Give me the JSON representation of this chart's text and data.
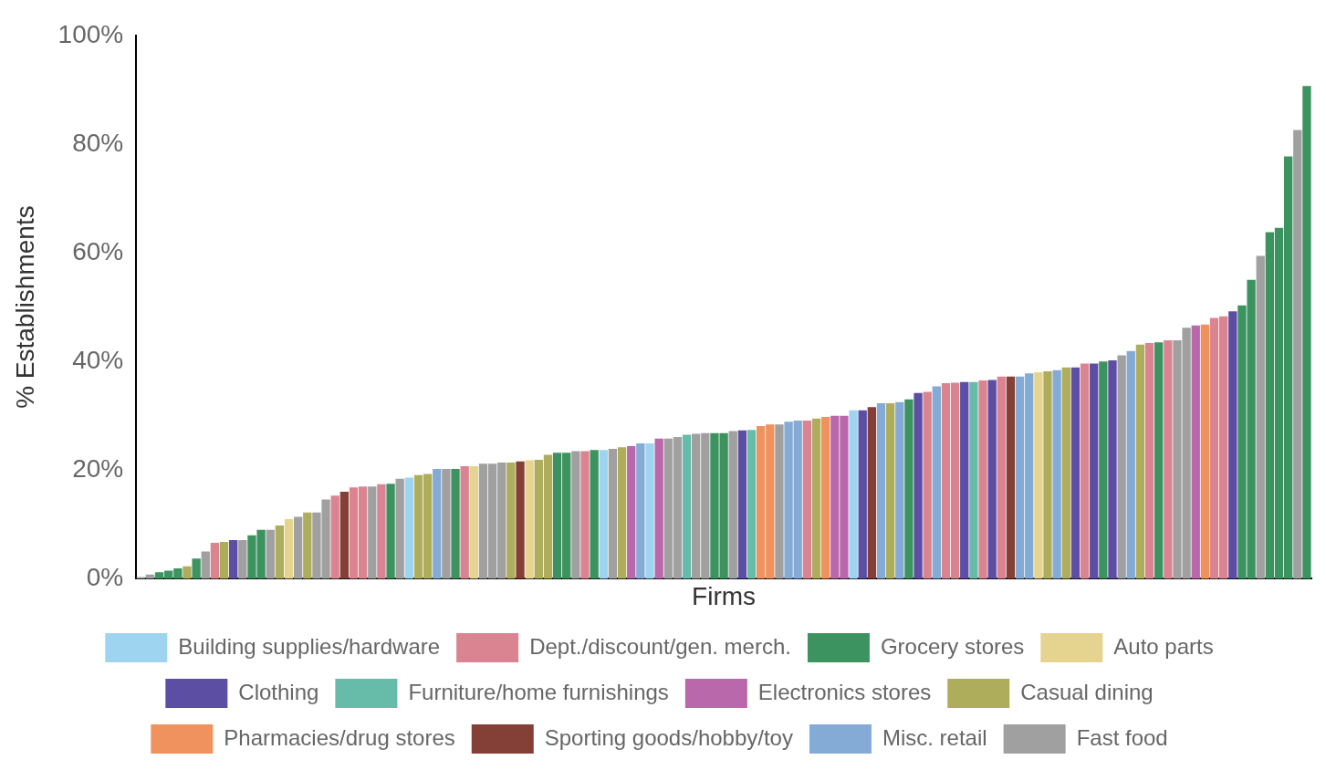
{
  "chart_data": {
    "type": "bar",
    "xlabel": "Firms",
    "ylabel": "% Establishments",
    "categories": [
      null,
      null,
      null,
      null,
      null,
      null,
      null,
      null,
      null,
      null,
      null,
      null,
      null,
      null,
      null,
      null,
      null,
      null,
      null,
      null,
      null,
      null,
      null,
      null,
      null,
      null,
      null,
      null,
      null,
      null,
      null,
      null,
      null,
      null,
      null,
      null,
      null,
      null,
      null,
      null,
      null,
      null,
      null,
      null,
      null,
      null,
      null,
      null,
      null,
      null,
      null,
      null,
      null,
      null,
      null,
      null,
      null,
      null,
      null,
      null,
      null,
      null,
      null,
      null,
      null,
      null,
      null,
      null,
      null,
      null,
      null,
      null,
      null,
      null,
      null,
      null,
      null,
      null,
      null,
      null,
      null,
      null,
      null,
      null,
      null,
      null,
      null,
      null,
      null,
      null,
      null,
      null,
      null,
      null,
      null,
      null,
      null,
      null,
      null,
      null,
      null,
      null,
      null,
      null,
      null,
      null,
      null,
      null,
      null,
      null,
      null,
      null,
      null,
      null,
      null,
      null,
      null,
      null,
      null,
      null,
      null,
      null,
      null,
      null,
      null,
      null,
      null
    ],
    "ylim": [
      0,
      100
    ],
    "yticks": [
      {
        "value": 0,
        "label": "0%"
      },
      {
        "value": 20,
        "label": "20%"
      },
      {
        "value": 40,
        "label": "40%"
      },
      {
        "value": 60,
        "label": "60%"
      },
      {
        "value": 80,
        "label": "80%"
      },
      {
        "value": 100,
        "label": "100%"
      }
    ],
    "stacked": true,
    "grid": false,
    "legend": "bottom",
    "series": [
      {
        "name": "Building supplies/hardware",
        "color": "#9fd4f0",
        "values": [
          null,
          null,
          null,
          null,
          null,
          null,
          null,
          null,
          null,
          null,
          null,
          null,
          null,
          null,
          null,
          null,
          null,
          null,
          null,
          null,
          null,
          null,
          null,
          null,
          null,
          null,
          null,
          null,
          null,
          18.6,
          null,
          null,
          null,
          null,
          null,
          null,
          null,
          null,
          null,
          null,
          null,
          null,
          null,
          null,
          null,
          null,
          null,
          null,
          null,
          null,
          23.7,
          null,
          null,
          null,
          null,
          24.9,
          null,
          null,
          null,
          null,
          null,
          null,
          null,
          null,
          null,
          null,
          null,
          null,
          null,
          null,
          null,
          null,
          null,
          null,
          null,
          null,
          null,
          31,
          null,
          null,
          null,
          null,
          null,
          null,
          null,
          null,
          null,
          null,
          null,
          null,
          null,
          null,
          null,
          null,
          null,
          null,
          null,
          null,
          null,
          null,
          null,
          null,
          null,
          null,
          null,
          null,
          null,
          null,
          null,
          null,
          null,
          null,
          null,
          null,
          null,
          null,
          null,
          null,
          null,
          null,
          null,
          null,
          null,
          null,
          null,
          null,
          null
        ]
      },
      {
        "name": "Dept./discount/gen. merch.",
        "color": "#d98490",
        "values": [
          null,
          null,
          null,
          null,
          null,
          null,
          null,
          null,
          6.6,
          null,
          null,
          null,
          null,
          null,
          null,
          null,
          null,
          null,
          null,
          null,
          null,
          15.3,
          null,
          16.8,
          17,
          null,
          17.4,
          null,
          null,
          null,
          null,
          null,
          null,
          null,
          null,
          20.7,
          null,
          null,
          null,
          null,
          null,
          null,
          null,
          null,
          null,
          null,
          null,
          null,
          23.5,
          null,
          null,
          null,
          null,
          null,
          null,
          null,
          null,
          null,
          null,
          null,
          null,
          null,
          null,
          null,
          null,
          null,
          null,
          null,
          null,
          null,
          null,
          null,
          29.1,
          null,
          null,
          null,
          null,
          null,
          null,
          null,
          null,
          null,
          null,
          null,
          null,
          34.4,
          null,
          36,
          36.1,
          null,
          null,
          36.5,
          null,
          37.2,
          null,
          null,
          null,
          null,
          null,
          null,
          null,
          null,
          39.6,
          null,
          null,
          null,
          null,
          null,
          null,
          43.4,
          null,
          43.9,
          null,
          null,
          null,
          null,
          48,
          48.3,
          null,
          null,
          null,
          null,
          null,
          null,
          null,
          null,
          null
        ]
      },
      {
        "name": "Grocery stores",
        "color": "#3d9360",
        "values": [
          null,
          null,
          1.2,
          1.5,
          1.9,
          null,
          3.7,
          null,
          null,
          null,
          null,
          null,
          8,
          9,
          null,
          null,
          null,
          null,
          null,
          null,
          null,
          null,
          null,
          null,
          null,
          null,
          null,
          17.5,
          null,
          null,
          null,
          null,
          null,
          null,
          20.2,
          null,
          null,
          null,
          null,
          null,
          null,
          null,
          null,
          null,
          null,
          23.2,
          23.2,
          null,
          null,
          23.7,
          null,
          null,
          null,
          null,
          null,
          null,
          null,
          null,
          null,
          null,
          null,
          null,
          26.8,
          26.8,
          null,
          null,
          null,
          null,
          null,
          null,
          null,
          null,
          null,
          null,
          null,
          null,
          null,
          null,
          null,
          null,
          null,
          null,
          null,
          33,
          null,
          null,
          null,
          null,
          null,
          null,
          null,
          null,
          null,
          null,
          null,
          null,
          null,
          null,
          null,
          null,
          null,
          null,
          null,
          null,
          40,
          null,
          null,
          null,
          null,
          null,
          43.5,
          null,
          null,
          null,
          null,
          null,
          null,
          null,
          null,
          50.3,
          55,
          null,
          63.8,
          64.6,
          77.7,
          null,
          90.7
        ]
      },
      {
        "name": "Auto parts",
        "color": "#e5d490",
        "values": [
          null,
          null,
          null,
          null,
          null,
          null,
          null,
          null,
          null,
          null,
          null,
          null,
          null,
          null,
          null,
          null,
          11,
          null,
          null,
          null,
          null,
          null,
          null,
          null,
          null,
          null,
          null,
          null,
          null,
          null,
          null,
          null,
          null,
          null,
          null,
          null,
          20.7,
          null,
          null,
          null,
          null,
          null,
          21.8,
          null,
          null,
          null,
          null,
          null,
          null,
          null,
          null,
          null,
          null,
          null,
          null,
          null,
          null,
          null,
          null,
          null,
          null,
          null,
          null,
          null,
          null,
          null,
          null,
          null,
          null,
          null,
          null,
          null,
          null,
          null,
          null,
          null,
          null,
          null,
          null,
          null,
          null,
          null,
          null,
          null,
          null,
          null,
          null,
          null,
          null,
          null,
          null,
          null,
          null,
          null,
          null,
          null,
          null,
          38,
          null,
          null,
          null,
          null,
          null,
          null,
          null,
          null,
          null,
          null,
          null,
          null,
          null,
          null,
          null,
          null,
          null,
          null,
          null,
          null,
          null,
          null,
          null,
          null,
          null,
          null,
          null,
          null,
          null
        ]
      },
      {
        "name": "Clothing",
        "color": "#5b4ea3",
        "values": [
          null,
          null,
          null,
          null,
          null,
          null,
          null,
          null,
          null,
          null,
          7.1,
          null,
          null,
          null,
          null,
          null,
          null,
          null,
          null,
          null,
          null,
          null,
          null,
          null,
          null,
          null,
          null,
          null,
          null,
          null,
          null,
          null,
          null,
          null,
          null,
          null,
          null,
          null,
          null,
          null,
          null,
          null,
          null,
          null,
          null,
          null,
          null,
          null,
          null,
          null,
          null,
          null,
          null,
          null,
          null,
          null,
          null,
          null,
          null,
          null,
          null,
          null,
          null,
          null,
          null,
          27.3,
          null,
          null,
          null,
          null,
          null,
          null,
          null,
          null,
          null,
          null,
          null,
          null,
          31,
          null,
          null,
          null,
          null,
          null,
          34.2,
          null,
          null,
          null,
          null,
          36.2,
          null,
          null,
          36.6,
          null,
          null,
          null,
          null,
          null,
          null,
          null,
          null,
          38.9,
          null,
          39.6,
          null,
          40.2,
          null,
          null,
          null,
          null,
          null,
          null,
          null,
          null,
          null,
          null,
          null,
          null,
          49.2,
          null,
          null,
          null,
          null,
          null,
          null,
          null,
          null
        ]
      },
      {
        "name": "Furniture/home furnishings",
        "color": "#66bba9",
        "values": [
          null,
          null,
          null,
          null,
          null,
          null,
          null,
          null,
          null,
          null,
          null,
          null,
          null,
          null,
          null,
          null,
          null,
          null,
          null,
          null,
          null,
          null,
          null,
          null,
          null,
          null,
          null,
          null,
          null,
          null,
          null,
          null,
          null,
          null,
          null,
          null,
          null,
          null,
          null,
          null,
          null,
          null,
          null,
          null,
          null,
          null,
          null,
          null,
          null,
          null,
          null,
          null,
          null,
          null,
          null,
          null,
          null,
          null,
          null,
          26.5,
          null,
          null,
          null,
          null,
          null,
          null,
          27.4,
          null,
          null,
          null,
          null,
          null,
          null,
          null,
          null,
          null,
          null,
          null,
          null,
          null,
          null,
          null,
          null,
          null,
          null,
          null,
          null,
          null,
          null,
          null,
          36.2,
          null,
          null,
          null,
          null,
          null,
          null,
          null,
          null,
          null,
          null,
          null,
          null,
          null,
          null,
          null,
          null,
          null,
          null,
          null,
          null,
          null,
          null,
          null,
          null,
          null,
          null,
          null,
          null,
          null,
          null,
          null,
          null,
          null,
          null,
          null,
          null
        ]
      },
      {
        "name": "Electronics stores",
        "color": "#b968ab",
        "values": [
          null,
          null,
          null,
          null,
          null,
          null,
          null,
          null,
          null,
          null,
          null,
          null,
          null,
          null,
          null,
          null,
          null,
          null,
          null,
          null,
          null,
          null,
          null,
          null,
          null,
          null,
          null,
          null,
          null,
          null,
          null,
          null,
          null,
          null,
          null,
          null,
          null,
          null,
          null,
          null,
          null,
          null,
          null,
          null,
          null,
          null,
          null,
          null,
          null,
          null,
          null,
          null,
          null,
          24.4,
          null,
          null,
          25.8,
          null,
          null,
          null,
          null,
          null,
          null,
          null,
          null,
          null,
          null,
          null,
          null,
          null,
          null,
          null,
          null,
          null,
          null,
          30,
          30,
          null,
          null,
          null,
          null,
          null,
          null,
          null,
          null,
          null,
          null,
          null,
          null,
          null,
          null,
          null,
          null,
          null,
          null,
          null,
          null,
          null,
          null,
          null,
          null,
          null,
          null,
          null,
          null,
          null,
          null,
          null,
          null,
          null,
          null,
          null,
          null,
          null,
          46.6,
          null,
          null,
          null,
          null,
          null,
          null,
          null,
          null,
          null,
          null,
          null,
          null
        ]
      },
      {
        "name": "Casual dining",
        "color": "#adad5b",
        "values": [
          null,
          null,
          null,
          null,
          null,
          2.3,
          null,
          null,
          null,
          6.8,
          null,
          null,
          null,
          null,
          null,
          9.8,
          null,
          null,
          12.2,
          null,
          null,
          null,
          null,
          null,
          null,
          null,
          null,
          null,
          null,
          null,
          19.1,
          19.3,
          null,
          null,
          null,
          null,
          null,
          null,
          null,
          null,
          21.4,
          null,
          null,
          21.9,
          22.8,
          null,
          null,
          null,
          null,
          null,
          null,
          null,
          24.2,
          null,
          null,
          null,
          null,
          null,
          null,
          null,
          null,
          null,
          null,
          null,
          null,
          null,
          null,
          null,
          null,
          null,
          null,
          null,
          null,
          29.5,
          null,
          null,
          null,
          null,
          null,
          null,
          null,
          32.3,
          null,
          null,
          null,
          null,
          null,
          null,
          null,
          null,
          null,
          null,
          null,
          null,
          null,
          null,
          null,
          null,
          38.2,
          null,
          38.9,
          null,
          null,
          null,
          null,
          null,
          null,
          null,
          43.1,
          null,
          null,
          null,
          null,
          null,
          null,
          null,
          null,
          null,
          null,
          null,
          null,
          null,
          null,
          null,
          null,
          null,
          null
        ]
      },
      {
        "name": "Pharmacies/drug stores",
        "color": "#f0925e",
        "values": [
          null,
          null,
          null,
          null,
          null,
          null,
          null,
          null,
          null,
          null,
          null,
          null,
          null,
          null,
          null,
          null,
          null,
          null,
          null,
          null,
          null,
          null,
          null,
          null,
          null,
          null,
          null,
          null,
          null,
          null,
          null,
          null,
          null,
          null,
          null,
          null,
          null,
          null,
          null,
          null,
          null,
          null,
          null,
          null,
          null,
          null,
          null,
          null,
          null,
          null,
          null,
          null,
          null,
          null,
          null,
          null,
          null,
          null,
          null,
          null,
          null,
          null,
          null,
          null,
          null,
          null,
          null,
          28.1,
          28.4,
          null,
          null,
          null,
          null,
          null,
          29.8,
          null,
          null,
          null,
          null,
          null,
          null,
          null,
          null,
          null,
          null,
          null,
          null,
          null,
          null,
          null,
          null,
          null,
          null,
          null,
          null,
          null,
          null,
          null,
          null,
          null,
          null,
          null,
          null,
          null,
          null,
          null,
          null,
          null,
          null,
          null,
          null,
          null,
          null,
          null,
          null,
          46.8,
          null,
          null,
          null,
          null,
          null,
          null,
          null,
          null,
          null,
          null,
          null
        ]
      },
      {
        "name": "Sporting goods/hobby/toy",
        "color": "#843f36",
        "values": [
          null,
          null,
          null,
          null,
          null,
          null,
          null,
          null,
          null,
          null,
          null,
          null,
          null,
          null,
          null,
          null,
          null,
          null,
          null,
          null,
          null,
          null,
          16,
          null,
          null,
          null,
          null,
          null,
          null,
          null,
          null,
          null,
          null,
          null,
          null,
          null,
          null,
          null,
          null,
          null,
          null,
          21.6,
          null,
          null,
          null,
          null,
          null,
          null,
          null,
          null,
          null,
          null,
          null,
          null,
          null,
          null,
          null,
          null,
          null,
          null,
          null,
          null,
          null,
          null,
          null,
          null,
          null,
          null,
          null,
          null,
          null,
          null,
          null,
          null,
          null,
          null,
          null,
          null,
          null,
          31.6,
          null,
          null,
          null,
          null,
          null,
          null,
          null,
          null,
          null,
          null,
          null,
          null,
          null,
          null,
          37.2,
          null,
          null,
          null,
          null,
          null,
          null,
          null,
          null,
          null,
          null,
          null,
          null,
          null,
          null,
          null,
          null,
          null,
          null,
          null,
          null,
          null,
          null,
          null,
          null,
          null,
          null,
          null,
          null,
          null,
          null,
          null,
          null
        ]
      },
      {
        "name": "Misc. retail",
        "color": "#84abd6",
        "values": [
          null,
          null,
          null,
          null,
          null,
          null,
          null,
          null,
          null,
          null,
          null,
          null,
          null,
          null,
          null,
          null,
          null,
          null,
          null,
          null,
          null,
          null,
          null,
          null,
          null,
          null,
          null,
          null,
          null,
          null,
          null,
          null,
          20.2,
          null,
          null,
          null,
          null,
          null,
          null,
          null,
          null,
          null,
          null,
          null,
          null,
          null,
          null,
          null,
          null,
          null,
          null,
          null,
          null,
          null,
          24.9,
          null,
          null,
          null,
          null,
          null,
          null,
          null,
          null,
          null,
          null,
          null,
          null,
          null,
          null,
          null,
          28.9,
          29.1,
          null,
          null,
          null,
          null,
          null,
          null,
          null,
          null,
          32.3,
          null,
          32.5,
          null,
          null,
          null,
          35.4,
          null,
          null,
          null,
          null,
          null,
          null,
          null,
          null,
          37.2,
          37.8,
          null,
          null,
          38.4,
          null,
          null,
          null,
          null,
          null,
          null,
          null,
          41.9,
          null,
          null,
          null,
          null,
          null,
          null,
          null,
          null,
          null,
          null,
          null,
          null,
          null,
          null,
          null,
          null,
          null,
          null,
          null
        ]
      },
      {
        "name": "Fast food",
        "color": "#a0a0a0",
        "values": [
          0.3,
          0.8,
          null,
          null,
          null,
          null,
          null,
          5,
          null,
          null,
          null,
          7.1,
          null,
          null,
          9,
          null,
          null,
          11.4,
          null,
          12.2,
          14.6,
          null,
          null,
          null,
          null,
          17,
          null,
          null,
          18.4,
          null,
          null,
          null,
          null,
          20.2,
          null,
          null,
          null,
          21.2,
          21.2,
          21.4,
          null,
          null,
          null,
          null,
          null,
          null,
          null,
          23.5,
          null,
          null,
          null,
          23.9,
          null,
          null,
          null,
          null,
          null,
          25.8,
          26.1,
          null,
          26.7,
          26.8,
          null,
          null,
          27.2,
          null,
          null,
          null,
          null,
          28.4,
          null,
          null,
          null,
          null,
          null,
          null,
          null,
          null,
          null,
          null,
          null,
          null,
          null,
          null,
          null,
          null,
          null,
          null,
          null,
          null,
          null,
          null,
          null,
          null,
          null,
          null,
          null,
          null,
          null,
          null,
          null,
          null,
          null,
          null,
          null,
          null,
          41.1,
          null,
          null,
          null,
          null,
          null,
          43.9,
          46.2,
          null,
          null,
          null,
          null,
          null,
          null,
          null,
          59.4,
          null,
          null,
          null,
          82.6,
          null
        ]
      }
    ]
  }
}
